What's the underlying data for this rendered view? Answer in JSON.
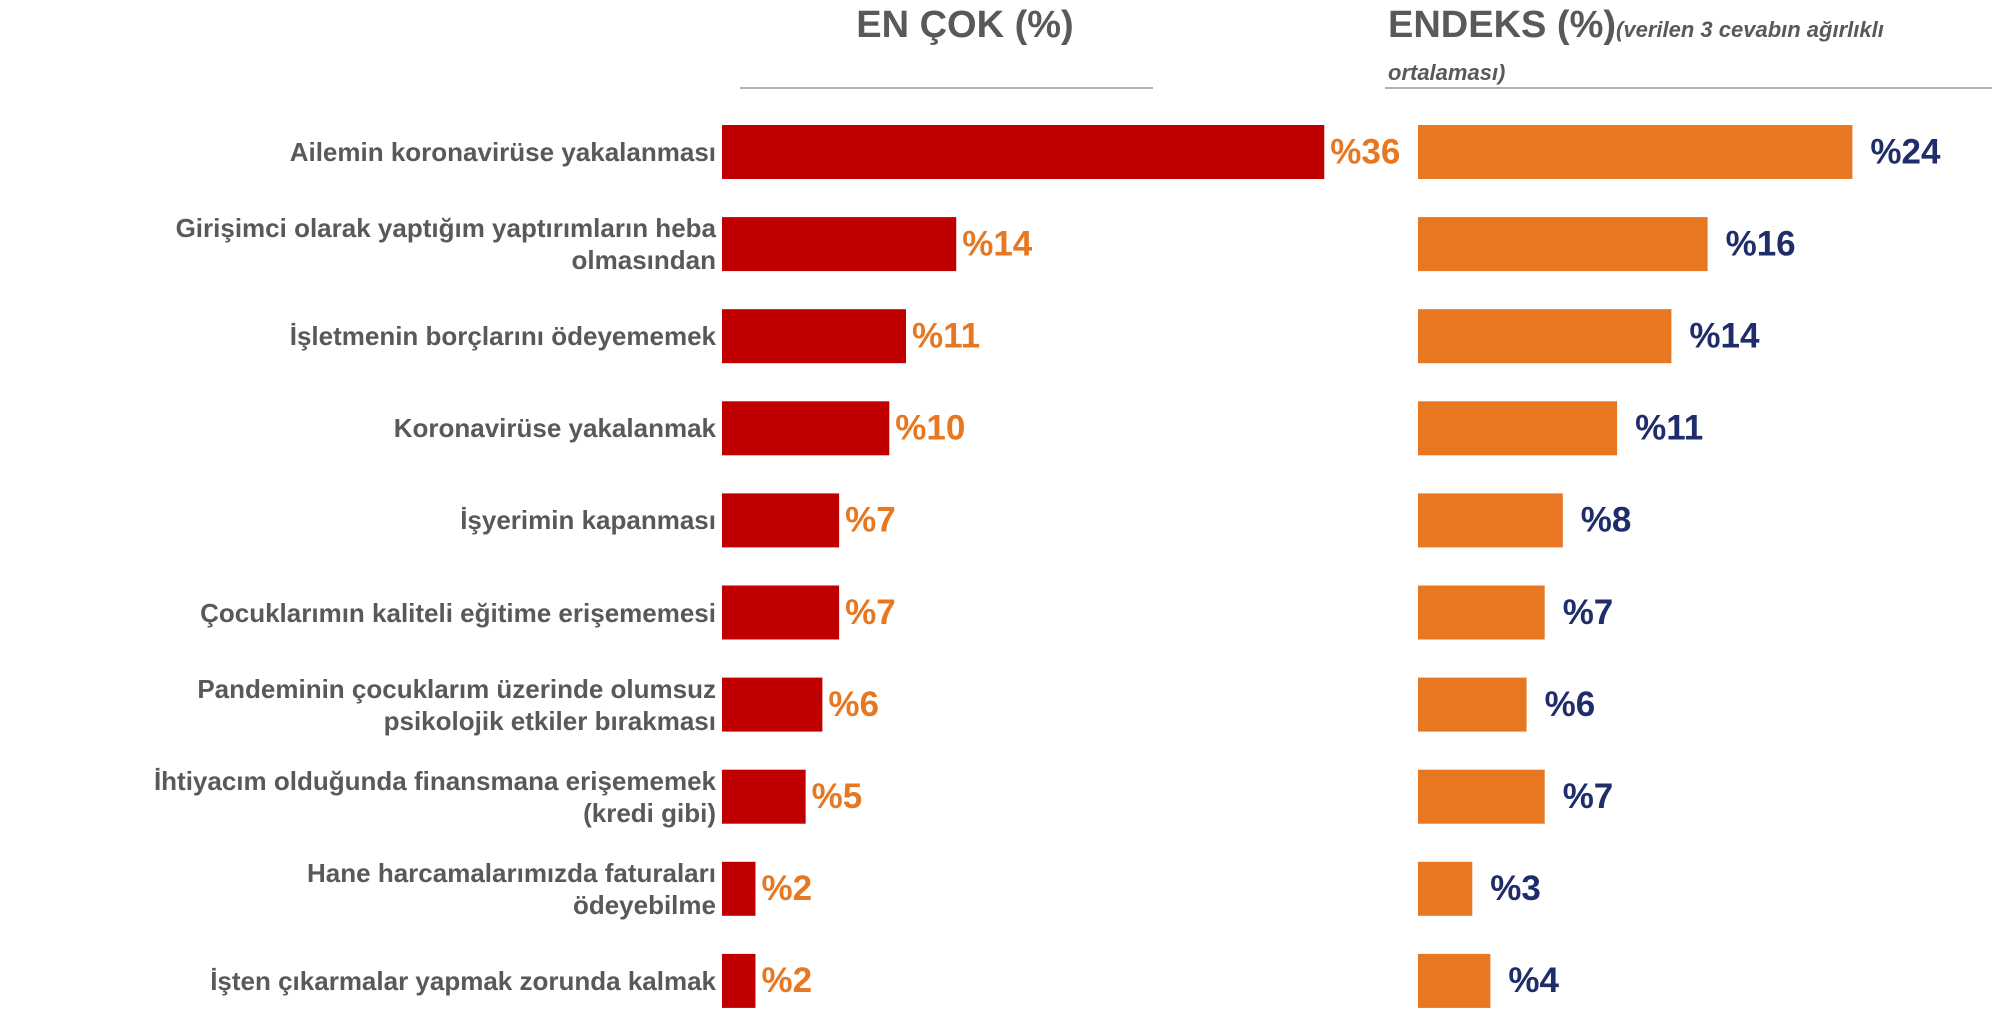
{
  "chart_data": {
    "type": "bar",
    "orientation": "horizontal",
    "subtitle": "(verilen 3 cevabın ağırlıklı\nortalaması)",
    "categories": [
      "Ailemin koronavirüse yakalanması",
      "Girişimci olarak yaptığım yaptırımların heba\nolmasından",
      "İşletmenin borçlarını ödeyememek",
      "Koronavirüse yakalanmak",
      "İşyerimin kapanması",
      "Çocuklarımın kaliteli eğitime erişememesi",
      "Pandeminin çocuklarım üzerinde olumsuz\npsikolojik etkiler bırakması",
      "İhtiyacım olduğunda finansmana erişememek\n(kredi gibi)",
      "Hane harcamalarımızda faturaları\nödeyebilme",
      "İşten çıkarmalar yapmak zorunda kalmak"
    ],
    "series": [
      {
        "name": "EN ÇOK (%)",
        "color": "#c00000",
        "label_color": "#e87722",
        "values": [
          36,
          14,
          11,
          10,
          7,
          7,
          6,
          5,
          2,
          2
        ],
        "value_labels": [
          "%36",
          "%14",
          "%11",
          "%10",
          "%7",
          "%7",
          "%6",
          "%5",
          "%2",
          "%2"
        ]
      },
      {
        "name": "ENDEKS (%)",
        "color": "#e87722",
        "label_color": "#1f2d6b",
        "values": [
          24,
          16,
          14,
          11,
          8,
          7,
          6,
          7,
          3,
          4
        ],
        "value_labels": [
          "%24",
          "%16",
          "%14",
          "%11",
          "%8",
          "%7",
          "%6",
          "%7",
          "%3",
          "%4"
        ]
      }
    ]
  }
}
